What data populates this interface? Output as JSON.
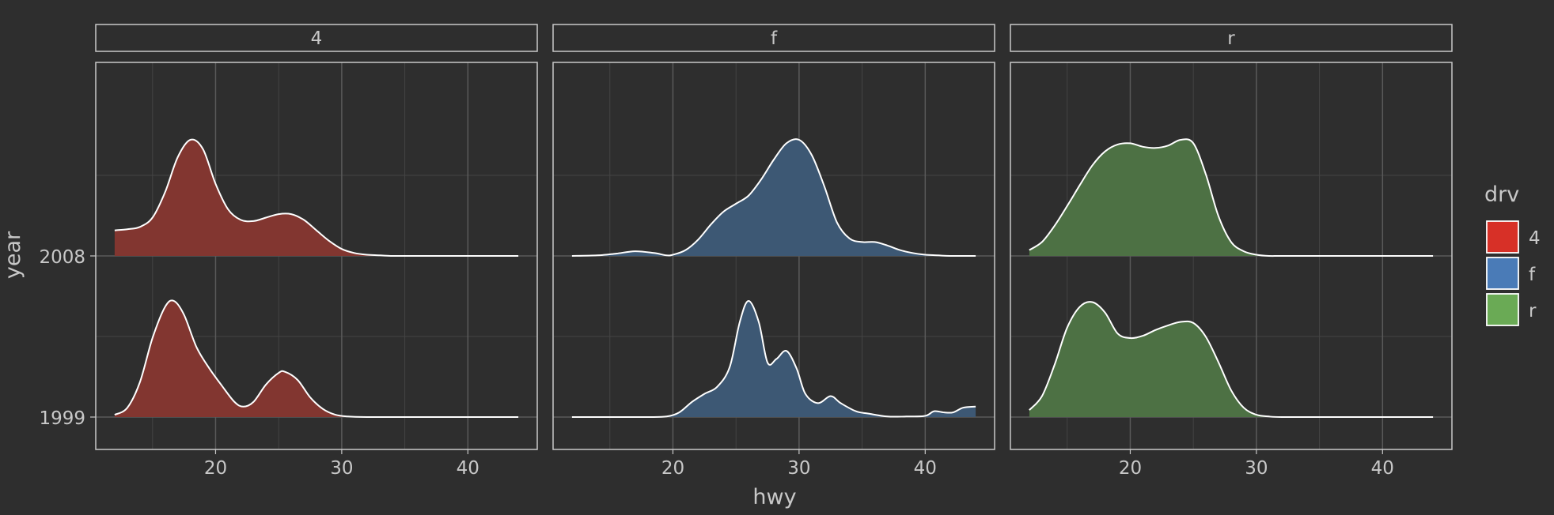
{
  "chart_data": {
    "type": "ridgeline",
    "facet_by": "drv",
    "panels": [
      "4",
      "f",
      "r"
    ],
    "xlabel": "hwy",
    "ylabel": "year",
    "xlim": [
      10.5,
      45.5
    ],
    "x_ticks": [
      20,
      30,
      40
    ],
    "x_minor_ticks": [
      15,
      25,
      35
    ],
    "y_categories": [
      "1999",
      "2008"
    ],
    "grid": true,
    "legend": {
      "title": "drv",
      "position": "right",
      "entries": [
        {
          "label": "4",
          "color": "#d73027"
        },
        {
          "label": "f",
          "color": "#4a7bb7"
        },
        {
          "label": "r",
          "color": "#6aaa55"
        }
      ]
    },
    "fill_colors": {
      "4": "#823630",
      "f": "#3d5874",
      "r": "#4d7144"
    },
    "series": [
      {
        "panel": "4",
        "year": "2008",
        "x": [
          12,
          13,
          14,
          15,
          16,
          17,
          18,
          19,
          20,
          21,
          22,
          23,
          24,
          25,
          26,
          27,
          28,
          29,
          30,
          31,
          32,
          33,
          34,
          35,
          38,
          41,
          44
        ],
        "density": [
          0.22,
          0.23,
          0.25,
          0.33,
          0.55,
          0.85,
          1.0,
          0.92,
          0.62,
          0.4,
          0.31,
          0.3,
          0.33,
          0.36,
          0.36,
          0.31,
          0.22,
          0.13,
          0.06,
          0.025,
          0.01,
          0.005,
          0,
          0,
          0,
          0,
          0
        ]
      },
      {
        "panel": "4",
        "year": "1999",
        "x": [
          12,
          13,
          14,
          15,
          16,
          16.7,
          17.5,
          18.5,
          19.5,
          20.5,
          21.5,
          22.2,
          23,
          24,
          25,
          25.5,
          26.5,
          27.5,
          28.5,
          29.5,
          30.5,
          32,
          35,
          38,
          41,
          44
        ],
        "density": [
          0.02,
          0.08,
          0.3,
          0.68,
          0.95,
          1.0,
          0.88,
          0.6,
          0.42,
          0.27,
          0.13,
          0.09,
          0.13,
          0.28,
          0.38,
          0.39,
          0.32,
          0.17,
          0.07,
          0.02,
          0.005,
          0,
          0,
          0,
          0,
          0
        ]
      },
      {
        "panel": "f",
        "year": "2008",
        "x": [
          12,
          14,
          15.5,
          17,
          18.5,
          19.5,
          20,
          21,
          22,
          23,
          24,
          25,
          26,
          27,
          28,
          29,
          30,
          31,
          32,
          33,
          34,
          35,
          36,
          37,
          38,
          39,
          40,
          41,
          42,
          44
        ],
        "density": [
          0,
          0.005,
          0.02,
          0.04,
          0.025,
          0.005,
          0.01,
          0.05,
          0.14,
          0.27,
          0.38,
          0.45,
          0.52,
          0.66,
          0.83,
          0.97,
          1.0,
          0.87,
          0.6,
          0.29,
          0.15,
          0.12,
          0.12,
          0.09,
          0.05,
          0.025,
          0.01,
          0.005,
          0,
          0
        ]
      },
      {
        "panel": "f",
        "year": "1999",
        "x": [
          12,
          15,
          18,
          19.5,
          20.5,
          21.5,
          22.5,
          23.5,
          24.5,
          25.3,
          26,
          26.8,
          27.5,
          28.2,
          29,
          29.8,
          30.5,
          31.5,
          32.5,
          33.3,
          34.5,
          35.5,
          37,
          38.5,
          40,
          40.7,
          41.5,
          42.2,
          43,
          44
        ],
        "density": [
          0,
          0,
          0,
          0.005,
          0.04,
          0.13,
          0.2,
          0.26,
          0.43,
          0.82,
          1.0,
          0.82,
          0.47,
          0.5,
          0.57,
          0.42,
          0.2,
          0.12,
          0.18,
          0.12,
          0.05,
          0.03,
          0.005,
          0.005,
          0.01,
          0.05,
          0.04,
          0.04,
          0.08,
          0.09
        ]
      },
      {
        "panel": "r",
        "year": "2008",
        "x": [
          12,
          13,
          14,
          15,
          16,
          17,
          18,
          19,
          20,
          21,
          22,
          23,
          24,
          25,
          26,
          27,
          28,
          29,
          30,
          31,
          32,
          35,
          38,
          41,
          44
        ],
        "density": [
          0.05,
          0.12,
          0.26,
          0.43,
          0.61,
          0.78,
          0.9,
          0.96,
          0.97,
          0.94,
          0.93,
          0.95,
          1.0,
          0.97,
          0.7,
          0.34,
          0.12,
          0.04,
          0.01,
          0,
          0,
          0,
          0,
          0,
          0
        ]
      },
      {
        "panel": "r",
        "year": "1999",
        "x": [
          12,
          13,
          14,
          15,
          16,
          17,
          18,
          19,
          20,
          21,
          22,
          23,
          24,
          25,
          26,
          27,
          28,
          29,
          30,
          31,
          32,
          35,
          38,
          41,
          44
        ],
        "density": [
          0.06,
          0.18,
          0.45,
          0.77,
          0.95,
          0.99,
          0.9,
          0.72,
          0.68,
          0.7,
          0.75,
          0.79,
          0.82,
          0.81,
          0.69,
          0.47,
          0.23,
          0.08,
          0.02,
          0.005,
          0,
          0,
          0,
          0,
          0
        ]
      }
    ]
  }
}
